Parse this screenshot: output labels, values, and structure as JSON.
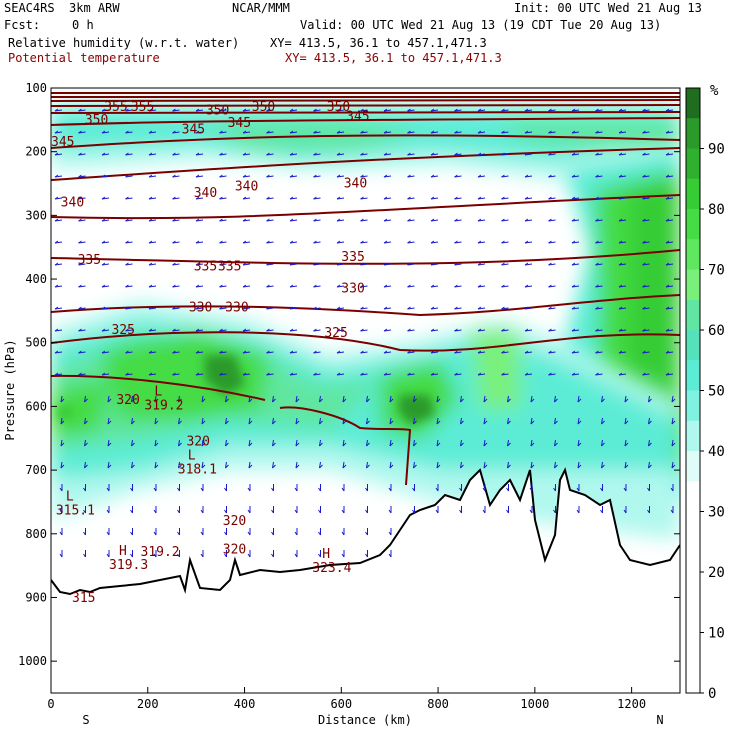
{
  "header": {
    "model": "SEAC4RS  3km ARW",
    "org": "NCAR/MMM",
    "init": "Init: 00 UTC Wed 21 Aug 13",
    "fcst_label": "Fcst:",
    "fcst_value": "0 h",
    "valid": "Valid: 00 UTC Wed 21 Aug 13 (19 CDT Tue 20 Aug 13)",
    "field1": "Relative humidity (w.r.t. water)",
    "xy1": "XY= 413.5, 36.1 to 457.1,471.3",
    "field2": "Potential temperature",
    "xy2": "XY= 413.5, 36.1 to 457.1,471.3"
  },
  "chart_data": {
    "type": "heatmap",
    "title": "Relative humidity (w.r.t. water)",
    "overlay": "Potential temperature",
    "xlabel": "Distance (km)",
    "ylabel": "Pressure (hPa)",
    "xlim": [
      0,
      1300
    ],
    "ylim": [
      1050,
      100
    ],
    "x_ticks": [
      "0",
      "200",
      "400",
      "600",
      "800",
      "1000",
      "1200"
    ],
    "x_tick_values": [
      0,
      200,
      400,
      600,
      800,
      1000,
      1200
    ],
    "y_ticks": [
      "100",
      "200",
      "300",
      "400",
      "500",
      "600",
      "700",
      "800",
      "900",
      "1000"
    ],
    "y_tick_values": [
      100,
      200,
      300,
      400,
      500,
      600,
      700,
      800,
      900,
      1000
    ],
    "x_end_labels": {
      "left": "S",
      "right": "N"
    },
    "colorbar": {
      "unit": "%",
      "labels": [
        "90",
        "80",
        "70",
        "60",
        "50",
        "40",
        "30",
        "20",
        "10",
        "0"
      ],
      "levels": [
        95,
        90,
        85,
        80,
        75,
        70,
        65,
        60,
        55,
        50,
        45,
        40,
        35,
        30,
        25,
        20,
        15,
        10,
        5,
        0
      ],
      "colors": [
        "#1f6e1f",
        "#2b9a2b",
        "#2fb12f",
        "#36cc36",
        "#45dc45",
        "#5fe85f",
        "#7af07a",
        "#60e6a0",
        "#55e2bb",
        "#5cecd6",
        "#80f2e0",
        "#b0f8ee",
        "#e0fcf8",
        "#ffffff",
        "#ffffff",
        "#ffffff",
        "#ffffff",
        "#ffffff",
        "#ffffff",
        "#ffffff"
      ]
    },
    "contour_labels": [
      {
        "text": "355",
        "x": 110,
        "p": 130
      },
      {
        "text": "355",
        "x": 165,
        "p": 130
      },
      {
        "text": "350",
        "x": 70,
        "p": 150
      },
      {
        "text": "350",
        "x": 320,
        "p": 135
      },
      {
        "text": "350",
        "x": 415,
        "p": 130
      },
      {
        "text": "350",
        "x": 570,
        "p": 130
      },
      {
        "text": "345",
        "x": 270,
        "p": 165
      },
      {
        "text": "345",
        "x": 365,
        "p": 155
      },
      {
        "text": "345",
        "x": 610,
        "p": 145
      },
      {
        "text": "345",
        "x": 0,
        "p": 185
      },
      {
        "text": "340",
        "x": 20,
        "p": 280
      },
      {
        "text": "340",
        "x": 295,
        "p": 265
      },
      {
        "text": "340",
        "x": 380,
        "p": 255
      },
      {
        "text": "340",
        "x": 605,
        "p": 250
      },
      {
        "text": "335",
        "x": 55,
        "p": 370
      },
      {
        "text": "335",
        "x": 295,
        "p": 380
      },
      {
        "text": "335",
        "x": 345,
        "p": 380
      },
      {
        "text": "335",
        "x": 600,
        "p": 365
      },
      {
        "text": "330",
        "x": 285,
        "p": 445
      },
      {
        "text": "330",
        "x": 360,
        "p": 445
      },
      {
        "text": "330",
        "x": 600,
        "p": 415
      },
      {
        "text": "325",
        "x": 125,
        "p": 480
      },
      {
        "text": "325",
        "x": 565,
        "p": 485
      },
      {
        "text": "320",
        "x": 135,
        "p": 590
      },
      {
        "text": "320",
        "x": 280,
        "p": 655
      },
      {
        "text": "320",
        "x": 355,
        "p": 780
      },
      {
        "text": "320",
        "x": 355,
        "p": 825
      }
    ],
    "extrema_labels": [
      {
        "kind": "L",
        "value": "319.2",
        "x": 193,
        "p": 605
      },
      {
        "kind": "L",
        "value": "318.1",
        "x": 262,
        "p": 705
      },
      {
        "kind": "L",
        "value": "315.1",
        "x": 10,
        "p": 770
      },
      {
        "kind": "H",
        "value": "319.3",
        "x": 120,
        "p": 855
      },
      {
        "kind": "",
        "value": "319.2",
        "x": 185,
        "p": 835
      },
      {
        "kind": "H",
        "value": "323.4",
        "x": 540,
        "p": 860
      }
    ],
    "terrain_label": "315",
    "grid": false,
    "legend": "colorbar-right"
  }
}
